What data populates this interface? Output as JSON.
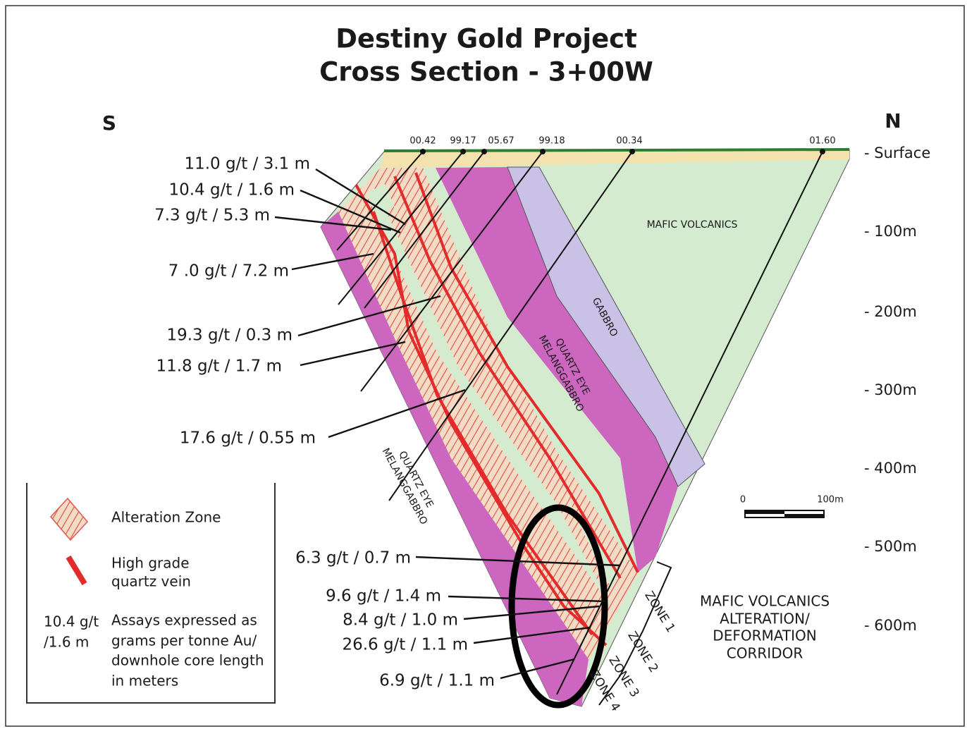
{
  "title": [
    "Destiny Gold Project",
    "Cross Section - 3+00W"
  ],
  "directions": {
    "south": "S",
    "north": "N"
  },
  "drill_holes": [
    "00.42",
    "99.17",
    "05.67",
    "99.18",
    "00.34",
    "01.60"
  ],
  "depth_labels": [
    "- Surface",
    "- 100m",
    "- 200m",
    "- 300m",
    "- 400m",
    "- 500m",
    "- 600m"
  ],
  "assays": [
    "11.0 g/t / 3.1 m",
    "10.4 g/t / 1.6 m",
    "7.3 g/t / 5.3 m",
    "7 .0 g/t / 7.2 m",
    "19.3 g/t / 0.3 m",
    "11.8 g/t / 1.7 m",
    "17.6 g/t / 0.55 m",
    "6.3 g/t / 0.7 m",
    "9.6 g/t / 1.4 m",
    "8.4 g/t / 1.0 m",
    "26.6 g/t / 1.1 m",
    "6.9 g/t / 1.1 m"
  ],
  "units": {
    "mafic_volcanics": "MAFIC VOLCANICS",
    "gabbro": "GABBRO",
    "quartz_eye_upper": [
      "QUARTZ EYE",
      "MELANGGABBRO"
    ],
    "quartz_eye_lower": [
      "QUARTZ EYE",
      "MELANGGABBRO"
    ]
  },
  "zones": [
    "ZONE 1",
    "ZONE 2",
    "ZONE 3",
    "ZONE 4"
  ],
  "corridor_label": [
    "MAFIC VOLCANICS",
    "ALTERATION/",
    "DEFORMATION",
    "CORRIDOR"
  ],
  "scale_bar": {
    "start": "0",
    "end": "100m"
  },
  "legend": {
    "alteration": "Alteration Zone",
    "vein": [
      "High grade",
      "quartz vein"
    ],
    "assay_example": [
      "10.4 g/t",
      "/1.6 m"
    ],
    "assay_note": [
      "Assays expressed as",
      "grams per tonne Au/",
      "downhole core length",
      "in meters"
    ]
  }
}
